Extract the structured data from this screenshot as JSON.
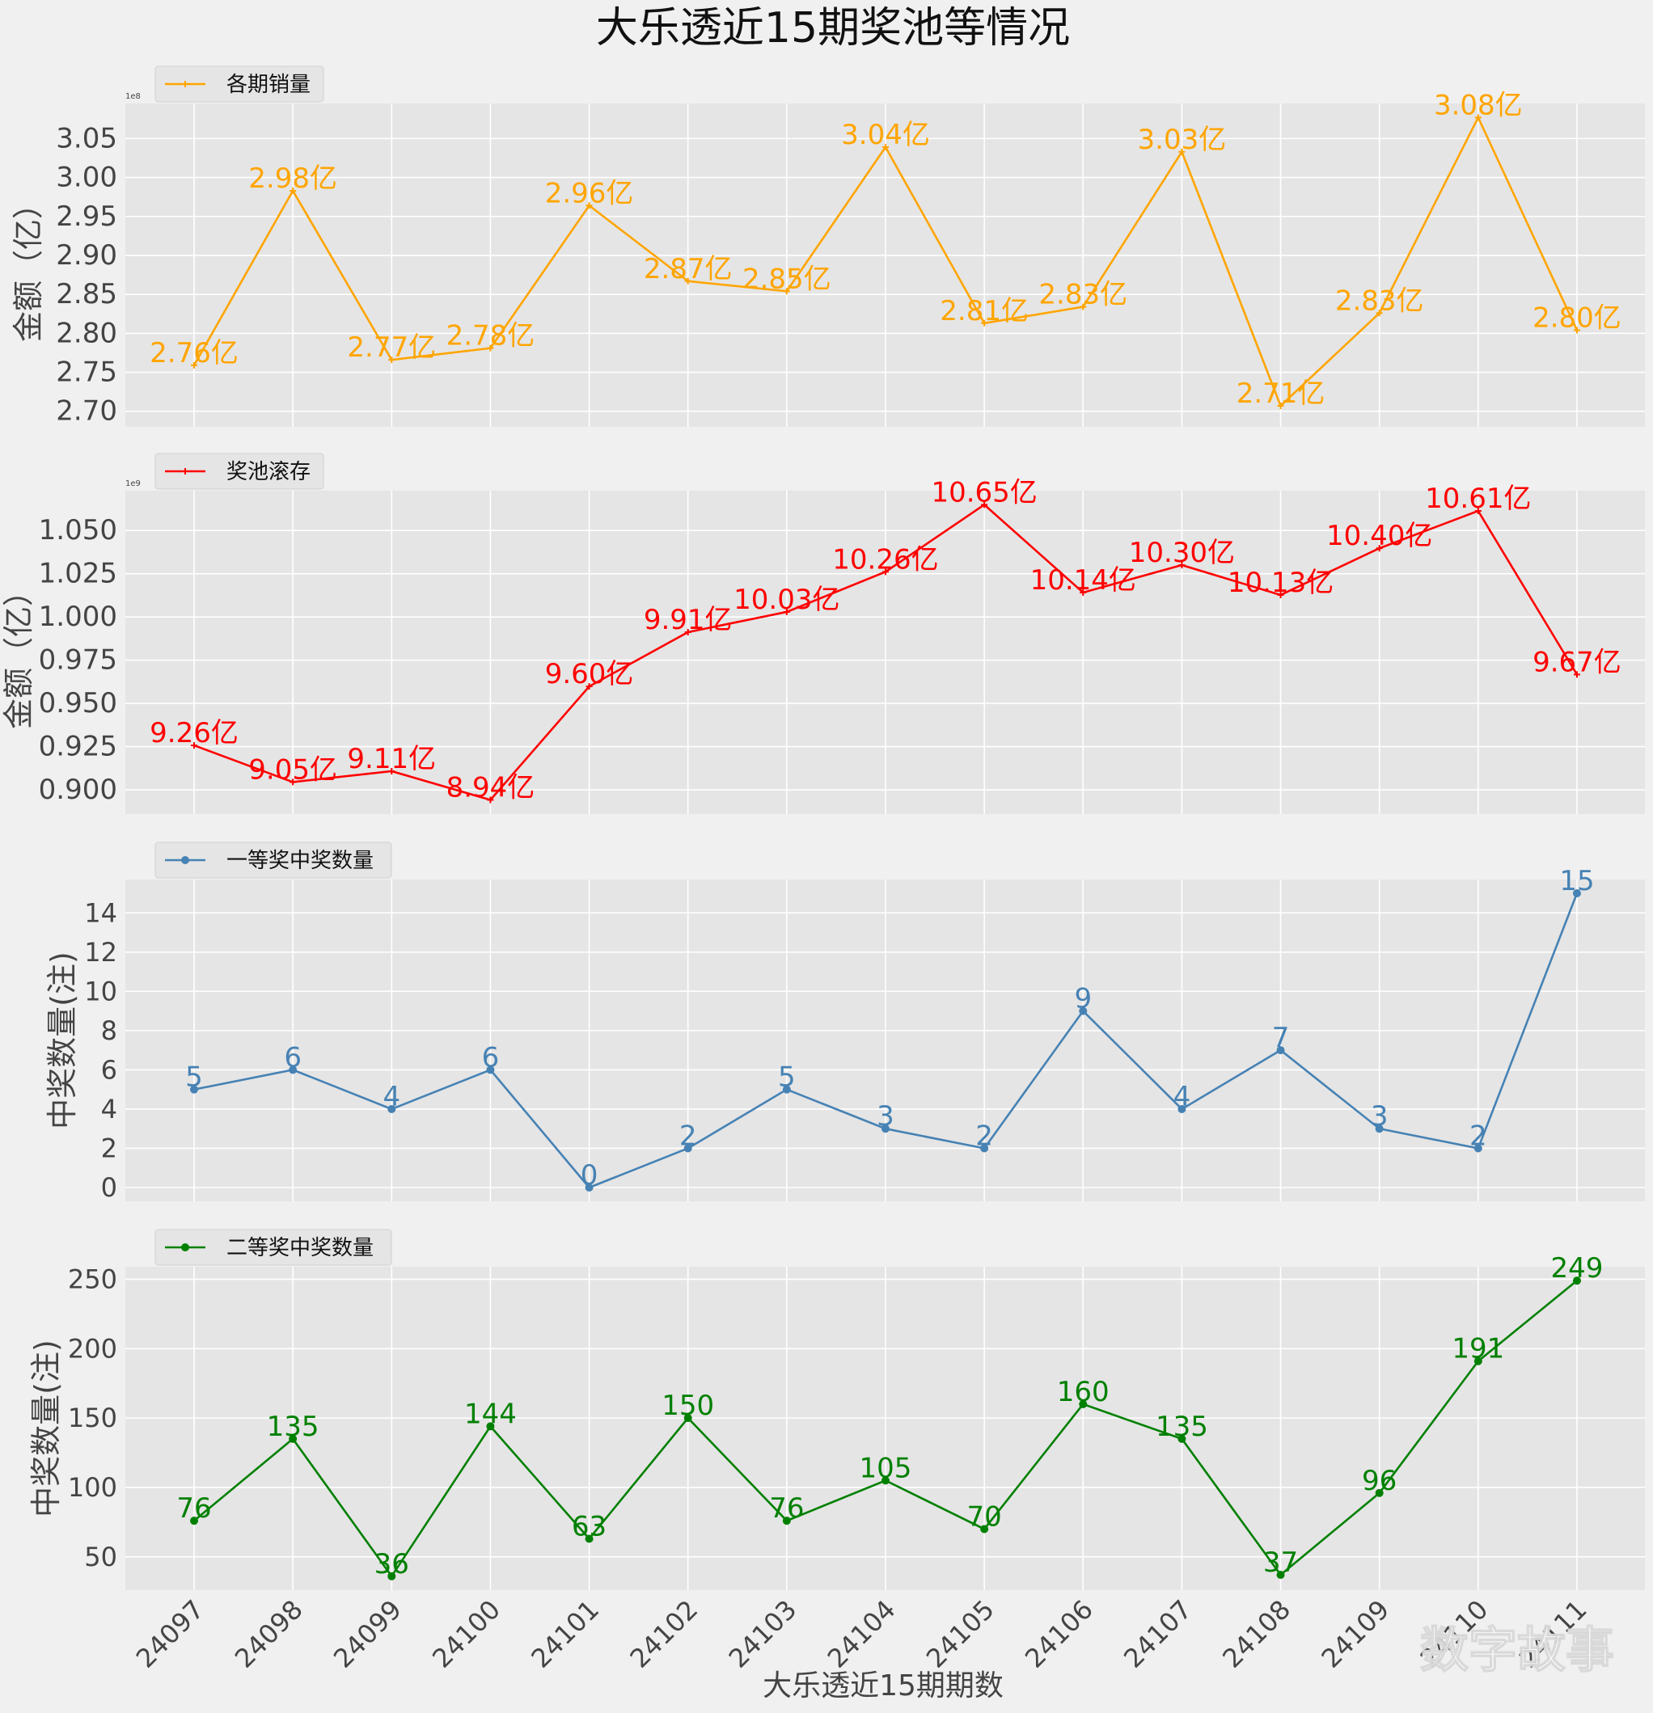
{
  "figure": {
    "title": "大乐透近15期奖池等情况",
    "xlabel": "大乐透近15期期数",
    "watermark": "数字故事",
    "colors": {
      "background": "#f0f0f0",
      "panel": "#e5e5e5",
      "grid": "#ffffff",
      "text": "#444444"
    }
  },
  "chart_data": [
    {
      "type": "line",
      "legend": "各期销量",
      "ylabel": "金额（亿）",
      "offset_text": "1e8",
      "color": "#ffa500",
      "marker": "plus",
      "x": [
        "24097",
        "24098",
        "24099",
        "24100",
        "24101",
        "24102",
        "24103",
        "24104",
        "24105",
        "24106",
        "24107",
        "24108",
        "24109",
        "24110",
        "24111"
      ],
      "values": [
        275900000,
        298300000,
        276600000,
        278100000,
        296400000,
        286700000,
        285400000,
        303900000,
        281300000,
        283400000,
        303300000,
        270700000,
        282600000,
        307700000,
        280400000
      ],
      "labels": [
        "2.76亿",
        "2.98亿",
        "2.77亿",
        "2.78亿",
        "2.96亿",
        "2.87亿",
        "2.85亿",
        "3.04亿",
        "2.81亿",
        "2.83亿",
        "3.03亿",
        "2.71亿",
        "2.83亿",
        "3.08亿",
        "2.80亿"
      ],
      "ylim": [
        268000000,
        309500000
      ],
      "yticks": [
        270000000,
        275000000,
        280000000,
        285000000,
        290000000,
        295000000,
        300000000,
        305000000
      ],
      "ytick_labels": [
        "2.70",
        "2.75",
        "2.80",
        "2.85",
        "2.90",
        "2.95",
        "3.00",
        "3.05"
      ],
      "grid": true,
      "legend_position": "top-left"
    },
    {
      "type": "line",
      "legend": "奖池滚存",
      "ylabel": "金额（亿）",
      "offset_text": "1e9",
      "color": "#ff0000",
      "marker": "plus",
      "x": [
        "24097",
        "24098",
        "24099",
        "24100",
        "24101",
        "24102",
        "24103",
        "24104",
        "24105",
        "24106",
        "24107",
        "24108",
        "24109",
        "24110",
        "24111"
      ],
      "values": [
        925700000,
        904500000,
        910800000,
        894200000,
        959800000,
        991200000,
        1002900000,
        1026100000,
        1064900000,
        1014100000,
        1030000000,
        1012700000,
        1039700000,
        1061300000,
        966700000
      ],
      "labels": [
        "9.26亿",
        "9.05亿",
        "9.11亿",
        "8.94亿",
        "9.60亿",
        "9.91亿",
        "10.03亿",
        "10.26亿",
        "10.65亿",
        "10.14亿",
        "10.30亿",
        "10.13亿",
        "10.40亿",
        "10.61亿",
        "9.67亿"
      ],
      "ylim": [
        886000000,
        1073000000
      ],
      "yticks": [
        900000000,
        925000000,
        950000000,
        975000000,
        1000000000,
        1025000000,
        1050000000
      ],
      "ytick_labels": [
        "0.900",
        "0.925",
        "0.950",
        "0.975",
        "1.000",
        "1.025",
        "1.050"
      ],
      "grid": true,
      "legend_position": "top-left"
    },
    {
      "type": "line",
      "legend": "一等奖中奖数量",
      "ylabel": "中奖数量(注)",
      "color": "#4682b4",
      "marker": "circle",
      "x": [
        "24097",
        "24098",
        "24099",
        "24100",
        "24101",
        "24102",
        "24103",
        "24104",
        "24105",
        "24106",
        "24107",
        "24108",
        "24109",
        "24110",
        "24111"
      ],
      "values": [
        5,
        6,
        4,
        6,
        0,
        2,
        5,
        3,
        2,
        9,
        4,
        7,
        3,
        2,
        15
      ],
      "labels": [
        "5",
        "6",
        "4",
        "6",
        "0",
        "2",
        "5",
        "3",
        "2",
        "9",
        "4",
        "7",
        "3",
        "2",
        "15"
      ],
      "ylim": [
        -0.7,
        15.7
      ],
      "yticks": [
        0,
        2,
        4,
        6,
        8,
        10,
        12,
        14
      ],
      "ytick_labels": [
        "0",
        "2",
        "4",
        "6",
        "8",
        "10",
        "12",
        "14"
      ],
      "grid": true,
      "legend_position": "top-left"
    },
    {
      "type": "line",
      "legend": "二等奖中奖数量",
      "ylabel": "中奖数量(注)",
      "color": "#008000",
      "marker": "circle",
      "x": [
        "24097",
        "24098",
        "24099",
        "24100",
        "24101",
        "24102",
        "24103",
        "24104",
        "24105",
        "24106",
        "24107",
        "24108",
        "24109",
        "24110",
        "24111"
      ],
      "values": [
        76,
        135,
        36,
        144,
        63,
        150,
        76,
        105,
        70,
        160,
        135,
        37,
        96,
        191,
        249
      ],
      "labels": [
        "76",
        "135",
        "36",
        "144",
        "63",
        "150",
        "76",
        "105",
        "70",
        "160",
        "135",
        "37",
        "96",
        "191",
        "249"
      ],
      "ylim": [
        26,
        259
      ],
      "yticks": [
        50,
        100,
        150,
        200,
        250
      ],
      "ytick_labels": [
        "50",
        "100",
        "150",
        "200",
        "250"
      ],
      "grid": true,
      "legend_position": "top-left"
    }
  ]
}
